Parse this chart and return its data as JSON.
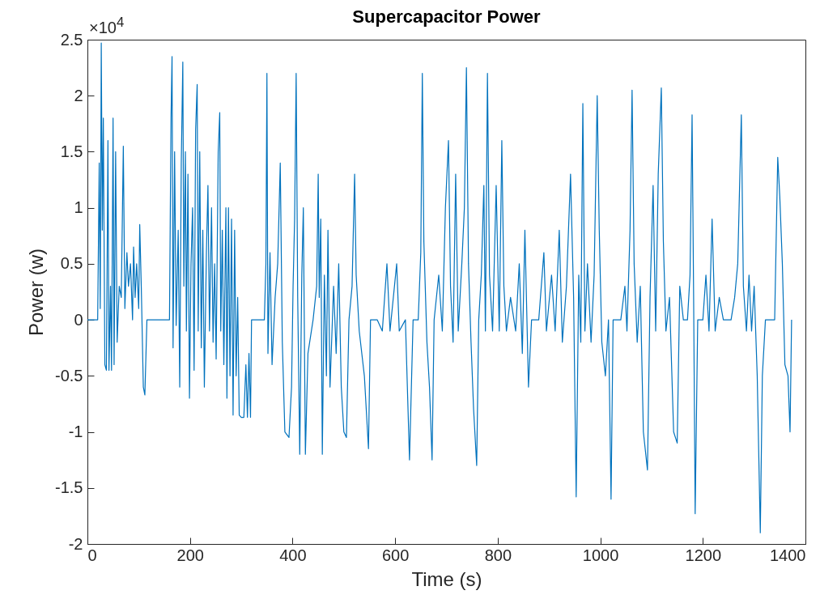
{
  "chart_data": {
    "type": "line",
    "title": "Supercapacitor Power",
    "xlabel": "Time (s)",
    "ylabel": "Power (w)",
    "annotations": [
      "×10$^{4}$"
    ],
    "xlim": [
      0,
      1400
    ],
    "xticks": [
      0,
      200,
      400,
      600,
      800,
      1000,
      1200,
      1400
    ],
    "ylim": [
      -2,
      2.5
    ],
    "yticks": [
      -2,
      -1.5,
      -1,
      -0.5,
      0,
      0.5,
      1,
      1.5,
      2,
      2.5
    ],
    "grid": false,
    "legend": false,
    "marker": "none",
    "line_style": "solid",
    "series": [
      {
        "color": "#0072bd",
        "x": [
          0,
          20,
          23,
          25,
          27,
          29,
          31,
          34,
          37,
          40,
          42,
          45,
          47,
          50,
          52,
          55,
          58,
          62,
          66,
          70,
          73,
          77,
          80,
          84,
          88,
          90,
          93,
          96,
          100,
          102,
          105,
          109,
          112,
          116,
          160,
          163,
          165,
          167,
          170,
          173,
          177,
          180,
          183,
          186,
          188,
          191,
          193,
          196,
          199,
          202,
          205,
          208,
          211,
          214,
          216,
          219,
          222,
          225,
          228,
          232,
          235,
          238,
          242,
          245,
          248,
          251,
          255,
          258,
          260,
          263,
          266,
          270,
          272,
          275,
          278,
          281,
          284,
          287,
          290,
          293,
          296,
          300,
          305,
          309,
          312,
          315,
          318,
          320,
          345,
          348,
          350,
          352,
          356,
          360,
          366,
          371,
          376,
          380,
          385,
          393,
          398,
          401,
          404,
          407,
          410,
          414,
          418,
          421,
          425,
          430,
          440,
          447,
          450,
          452,
          455,
          458,
          462,
          466,
          469,
          473,
          480,
          485,
          490,
          495,
          500,
          505,
          510,
          516,
          521,
          524,
          530,
          540,
          548,
          552,
          565,
          575,
          584,
          590,
          603,
          608,
          620,
          628,
          635,
          645,
          650,
          653,
          656,
          662,
          667,
          672,
          676,
          685,
          692,
          698,
          704,
          708,
          713,
          718,
          723,
          730,
          735,
          739,
          743,
          748,
          753,
          759,
          763,
          768,
          773,
          776,
          780,
          784,
          790,
          797,
          803,
          808,
          812,
          817,
          825,
          835,
          842,
          848,
          853,
          860,
          866,
          880,
          890,
          895,
          905,
          912,
          920,
          926,
          934,
          942,
          948,
          953,
          958,
          962,
          966,
          970,
          975,
          982,
          988,
          994,
          998,
          1003,
          1010,
          1016,
          1021,
          1025,
          1040,
          1048,
          1052,
          1058,
          1062,
          1066,
          1072,
          1078,
          1084,
          1092,
          1097,
          1103,
          1108,
          1113,
          1119,
          1123,
          1128,
          1135,
          1143,
          1150,
          1155,
          1162,
          1170,
          1175,
          1179,
          1182,
          1185,
          1190,
          1200,
          1206,
          1212,
          1218,
          1224,
          1232,
          1240,
          1255,
          1262,
          1268,
          1275,
          1279,
          1285,
          1290,
          1295,
          1300,
          1306,
          1312,
          1316,
          1322,
          1340,
          1346,
          1350,
          1355,
          1360,
          1366,
          1370,
          1373
        ],
        "values": [
          0,
          0,
          1.4,
          0.1,
          2.47,
          0.8,
          1.8,
          -0.4,
          -0.45,
          1.6,
          -0.45,
          0.3,
          -0.45,
          1.8,
          -0.4,
          1.5,
          -0.2,
          0.3,
          0.2,
          1.55,
          0.1,
          0.6,
          0.3,
          0.5,
          0,
          0.65,
          0.2,
          0.5,
          0.1,
          0.85,
          0.3,
          -0.6,
          -0.67,
          0,
          0,
          1.8,
          2.35,
          -0.25,
          1.5,
          -0.05,
          0.8,
          -0.6,
          1.4,
          2.3,
          0.3,
          1.5,
          -0.1,
          1.3,
          -0.7,
          0.5,
          1.0,
          -0.45,
          1.7,
          2.1,
          -0.1,
          1.5,
          -0.25,
          0.8,
          -0.6,
          0.6,
          1.2,
          -0.1,
          1.0,
          -0.2,
          0.5,
          -0.35,
          1.5,
          1.85,
          -0.1,
          0.8,
          -0.4,
          1.0,
          -0.7,
          1.0,
          -0.5,
          0.9,
          -0.85,
          0.8,
          -0.5,
          0.2,
          -0.85,
          -0.87,
          -0.87,
          -0.4,
          -0.87,
          -0.3,
          -0.87,
          0,
          0,
          0.5,
          2.2,
          -0.3,
          0.6,
          -0.4,
          0.2,
          0.5,
          1.4,
          -0.2,
          -1.0,
          -1.05,
          -0.6,
          0.3,
          0.9,
          2.2,
          0.2,
          -1.2,
          0.4,
          1.0,
          -1.2,
          -0.3,
          0,
          0.3,
          1.3,
          0.2,
          0.9,
          -1.2,
          0.4,
          -0.5,
          0.8,
          -0.6,
          0.3,
          -0.3,
          0.5,
          -0.6,
          -1.0,
          -1.05,
          0,
          0.3,
          1.3,
          0.4,
          -0.1,
          -0.5,
          -1.15,
          0,
          0,
          -0.1,
          0.5,
          -0.1,
          0.5,
          -0.1,
          0,
          -1.25,
          0,
          0,
          0.6,
          2.2,
          0.7,
          -0.2,
          -0.6,
          -1.25,
          0,
          0.4,
          -0.1,
          1.0,
          1.6,
          0.3,
          -0.2,
          1.3,
          -0.1,
          0.5,
          1.0,
          2.25,
          0.5,
          -0.2,
          -0.8,
          -1.3,
          0,
          0.4,
          1.2,
          -0.1,
          2.2,
          0.4,
          -0.1,
          1.2,
          -0.1,
          1.6,
          0.3,
          -0.1,
          0.2,
          -0.1,
          0.5,
          -0.3,
          0.8,
          -0.6,
          0,
          0,
          0.6,
          -0.1,
          0.4,
          -0.1,
          0.8,
          -0.2,
          0.3,
          1.3,
          0.2,
          -1.58,
          0.4,
          -0.2,
          1.93,
          -0.1,
          0.5,
          -0.2,
          0.4,
          2.0,
          0.8,
          -0.2,
          -0.5,
          0,
          -1.6,
          0,
          0,
          0.3,
          -0.1,
          0.8,
          2.05,
          0.5,
          -0.2,
          0.3,
          -1.0,
          -1.34,
          0.2,
          1.2,
          -0.1,
          1.3,
          2.07,
          0.7,
          -0.1,
          0.2,
          -1.0,
          -1.1,
          0.3,
          0,
          0,
          0.4,
          1.83,
          0.2,
          -1.73,
          0,
          0,
          0.4,
          -0.1,
          0.9,
          -0.1,
          0.2,
          0,
          0,
          0.2,
          0.5,
          1.83,
          0.3,
          -0.1,
          0.4,
          -0.1,
          0.3,
          -0.5,
          -1.9,
          -0.5,
          0,
          0,
          1.45,
          1.1,
          0.5,
          -0.4,
          -0.5,
          -1.0,
          0
        ]
      }
    ]
  }
}
